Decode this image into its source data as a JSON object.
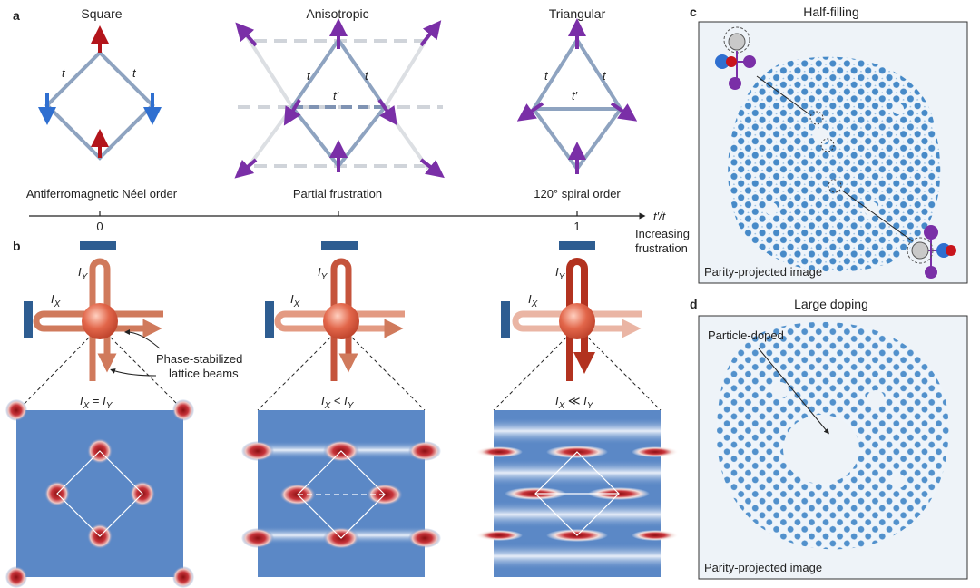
{
  "panel_labels": {
    "a": "a",
    "b": "b",
    "c": "c",
    "d": "d"
  },
  "panel_a": {
    "lattices": [
      {
        "title": "Square",
        "order": "Antiferromagnetic Néel order",
        "tick": "0"
      },
      {
        "title": "Anisotropic",
        "order": "Partial frustration",
        "tick": ""
      },
      {
        "title": "Triangular",
        "order": "120° spiral order",
        "tick": "1"
      }
    ],
    "hop_t": "t",
    "hop_tp": "t′",
    "axis_label": "t′/t",
    "axis_note_1": "Increasing",
    "axis_note_2": "frustration"
  },
  "panel_b": {
    "beam_x": "I",
    "beam_y": "I",
    "sub_x": "X",
    "sub_y": "Y",
    "relations": [
      "=",
      "<",
      "≪"
    ],
    "annotation_1": "Phase-stabilized",
    "annotation_2": "lattice beams"
  },
  "panel_c": {
    "title": "Half-filling",
    "caption": "Parity-projected image"
  },
  "panel_d": {
    "title": "Large doping",
    "annotation": "Particle-doped",
    "caption": "Parity-projected image"
  },
  "colors": {
    "spin_up": "#b3151b",
    "spin_down": "#2f6fd0",
    "chiral": "#7a2fa7",
    "bond": "#8ea3c0",
    "beam": "#d07a5c",
    "mirror": "#2e5d91",
    "potential": "#5b88c6",
    "atom_blue": "#2a78c0"
  }
}
